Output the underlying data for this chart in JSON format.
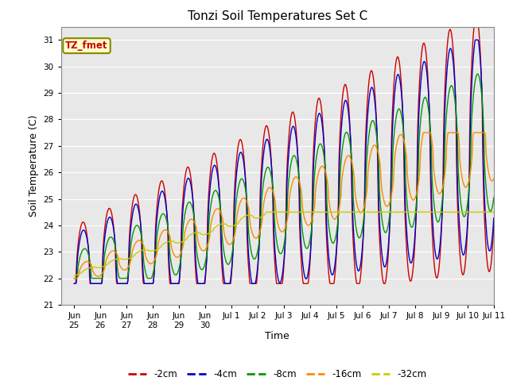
{
  "title": "Tonzi Soil Temperatures Set C",
  "xlabel": "Time",
  "ylabel": "Soil Temperature (C)",
  "ylim": [
    21.0,
    31.5
  ],
  "yticks": [
    21.0,
    22.0,
    23.0,
    24.0,
    25.0,
    26.0,
    27.0,
    28.0,
    29.0,
    30.0,
    31.0
  ],
  "fig_bg_color": "#ffffff",
  "plot_bg_color": "#e8e8e8",
  "legend_label": "TZ_fmet",
  "series_colors": {
    "-2cm": "#cc0000",
    "-4cm": "#0000cc",
    "-8cm": "#009900",
    "-16cm": "#ff8800",
    "-32cm": "#cccc00"
  },
  "x_tick_labels": [
    "Jun 25",
    "Jun 26",
    "Jun 27",
    "Jun 28",
    "Jun 29",
    "Jun 30",
    "Jul 1",
    "Jul 2",
    "Jul 3",
    "Jul 4",
    "Jul 5",
    "Jul 6",
    "Jul 7",
    "Jul 8",
    "Jul 9",
    "Jul 10",
    "Jul 11"
  ]
}
